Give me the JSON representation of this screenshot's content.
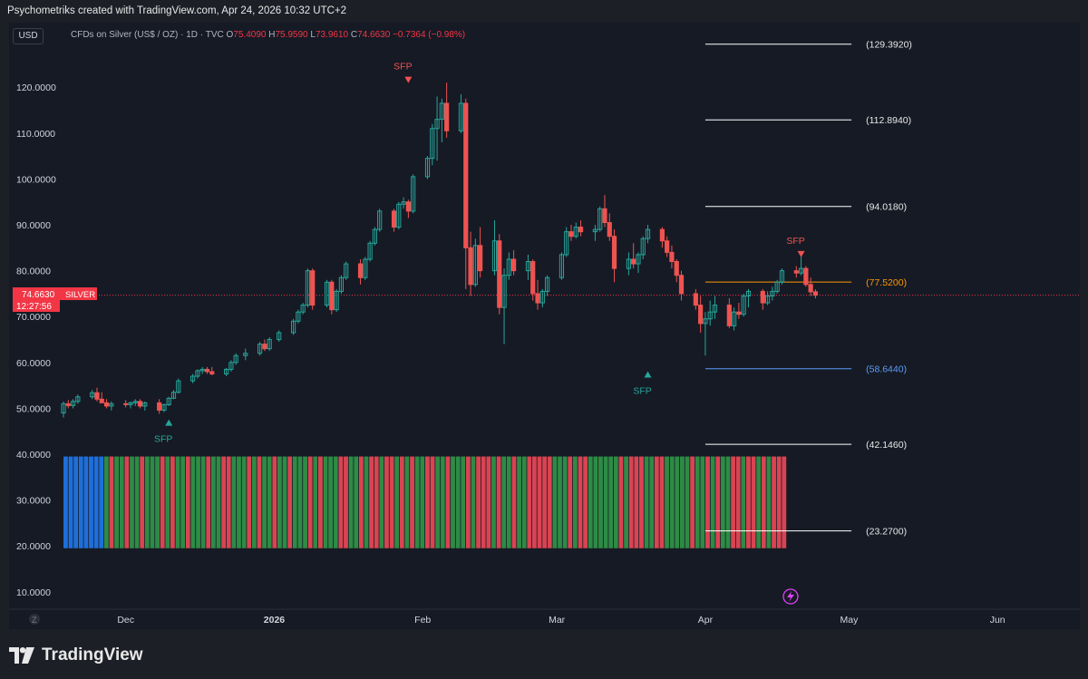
{
  "header": {
    "caption": "Psychometriks created with TradingView.com, Apr 24, 2026 10:32 UTC+2"
  },
  "toolbar": {
    "currency": "USD",
    "symbol_description": "CFDs on Silver (US$ / OZ) · 1D · TVC",
    "ohlc": {
      "o_label": "O",
      "o_value": "75.4090",
      "h_label": "H",
      "h_value": "75.9590",
      "l_label": "L",
      "l_value": "73.9610",
      "c_label": "C",
      "c_value": "74.6630",
      "change": "−0.7364 (−0.98%)"
    }
  },
  "price_tag": {
    "price": "74.6630",
    "symbol": "SILVER",
    "countdown": "12:27:56"
  },
  "footer": {
    "brand": "TradingView"
  },
  "colors": {
    "up": "#26a69a",
    "down": "#ef5350",
    "panel": "#161a25",
    "fib_white": "#ffffff",
    "fib_orange": "#ff9800",
    "fib_blue": "#5b9cf6",
    "vol_green": "#2e8b45",
    "vol_red": "#d94452",
    "vol_blue": "#1e6fd9"
  },
  "chart_data": {
    "type": "candlestick",
    "y_axis": {
      "ticks": [
        "120.0000",
        "110.0000",
        "100.0000",
        "90.0000",
        "80.0000",
        "70.0000",
        "60.0000",
        "50.0000",
        "40.0000",
        "30.0000",
        "20.0000",
        "10.0000"
      ],
      "tick_values": [
        120,
        110,
        100,
        90,
        80,
        70,
        60,
        50,
        40,
        30,
        20,
        10
      ],
      "range": [
        7,
        132.5
      ]
    },
    "x_axis": {
      "labels": [
        "Dec",
        "2026",
        "Feb",
        "Mar",
        "Apr",
        "May",
        "Jun"
      ],
      "label_dates": [
        "2025-12-01",
        "2026-01-01",
        "2026-02-01",
        "2026-03-01",
        "2026-04-01",
        "2026-05-01",
        "2026-06-01"
      ],
      "bold": [
        "2026"
      ],
      "start_date": "2025-11-18",
      "end_date": "2026-06-18"
    },
    "fib_levels": [
      {
        "label": "(129.3920)",
        "value": 129.392,
        "color": "white"
      },
      {
        "label": "(112.8940)",
        "value": 112.894,
        "color": "white"
      },
      {
        "label": "(94.0180)",
        "value": 94.018,
        "color": "white"
      },
      {
        "label": "(77.5200)",
        "value": 77.52,
        "color": "orange"
      },
      {
        "label": "(58.6440)",
        "value": 58.644,
        "color": "blue"
      },
      {
        "label": "(42.1460)",
        "value": 42.146,
        "color": "white"
      },
      {
        "label": "(23.2700)",
        "value": 23.27,
        "color": "white"
      }
    ],
    "fib_range_dates": [
      "2026-04-01",
      "2026-04-30"
    ],
    "current_price": 74.663,
    "sfp_markers": [
      {
        "label": "SFP",
        "date": "2025-12-10",
        "value": 47.0,
        "direction": "up",
        "color": "up"
      },
      {
        "label": "SFP",
        "date": "2026-01-29",
        "value": 121.5,
        "direction": "down",
        "color": "down"
      },
      {
        "label": "SFP",
        "date": "2026-03-20",
        "value": 57.5,
        "direction": "up",
        "color": "up"
      },
      {
        "label": "SFP",
        "date": "2026-04-21",
        "value": 83.5,
        "direction": "down",
        "color": "down"
      }
    ],
    "candles": [
      {
        "d": "2025-11-18",
        "o": 49.0,
        "h": 51.5,
        "l": 48.0,
        "c": 51.0
      },
      {
        "d": "2025-11-19",
        "o": 51.0,
        "h": 51.8,
        "l": 50.0,
        "c": 50.6
      },
      {
        "d": "2025-11-20",
        "o": 50.6,
        "h": 52.0,
        "l": 50.0,
        "c": 51.5
      },
      {
        "d": "2025-11-21",
        "o": 51.5,
        "h": 53.0,
        "l": 51.0,
        "c": 52.5
      },
      {
        "d": "2025-11-24",
        "o": 52.5,
        "h": 54.0,
        "l": 52.0,
        "c": 53.4
      },
      {
        "d": "2025-11-25",
        "o": 53.4,
        "h": 54.5,
        "l": 51.5,
        "c": 52.0
      },
      {
        "d": "2025-11-26",
        "o": 52.0,
        "h": 53.5,
        "l": 51.5,
        "c": 51.2
      },
      {
        "d": "2025-11-27",
        "o": 51.2,
        "h": 52.0,
        "l": 50.0,
        "c": 50.5
      },
      {
        "d": "2025-11-28",
        "o": 50.5,
        "h": 51.5,
        "l": 49.5,
        "c": 51.0
      },
      {
        "d": "2025-12-01",
        "o": 51.0,
        "h": 51.8,
        "l": 50.2,
        "c": 50.8
      },
      {
        "d": "2025-12-02",
        "o": 50.8,
        "h": 51.5,
        "l": 50.0,
        "c": 51.2
      },
      {
        "d": "2025-12-03",
        "o": 51.2,
        "h": 52.0,
        "l": 50.5,
        "c": 51.5
      },
      {
        "d": "2025-12-04",
        "o": 51.5,
        "h": 52.0,
        "l": 50.0,
        "c": 50.5
      },
      {
        "d": "2025-12-05",
        "o": 50.5,
        "h": 51.5,
        "l": 49.5,
        "c": 51.2
      },
      {
        "d": "2025-12-08",
        "o": 51.2,
        "h": 52.0,
        "l": 48.8,
        "c": 49.6
      },
      {
        "d": "2025-12-09",
        "o": 49.6,
        "h": 51.0,
        "l": 49.2,
        "c": 50.8
      },
      {
        "d": "2025-12-10",
        "o": 50.8,
        "h": 52.5,
        "l": 50.5,
        "c": 52.2
      },
      {
        "d": "2025-12-11",
        "o": 52.2,
        "h": 54.0,
        "l": 52.0,
        "c": 53.5
      },
      {
        "d": "2025-12-12",
        "o": 53.5,
        "h": 56.5,
        "l": 53.2,
        "c": 56.0
      },
      {
        "d": "2025-12-15",
        "o": 56.0,
        "h": 57.5,
        "l": 55.5,
        "c": 57.0
      },
      {
        "d": "2025-12-16",
        "o": 57.0,
        "h": 58.5,
        "l": 56.5,
        "c": 58.2
      },
      {
        "d": "2025-12-17",
        "o": 58.2,
        "h": 59.0,
        "l": 57.5,
        "c": 58.5
      },
      {
        "d": "2025-12-18",
        "o": 58.5,
        "h": 59.0,
        "l": 57.5,
        "c": 58.0
      },
      {
        "d": "2025-12-19",
        "o": 58.0,
        "h": 59.0,
        "l": 57.2,
        "c": 57.5
      },
      {
        "d": "2025-12-22",
        "o": 57.5,
        "h": 58.8,
        "l": 57.0,
        "c": 58.5
      },
      {
        "d": "2025-12-23",
        "o": 58.5,
        "h": 60.5,
        "l": 58.0,
        "c": 60.0
      },
      {
        "d": "2025-12-24",
        "o": 60.0,
        "h": 62.0,
        "l": 59.5,
        "c": 61.5
      },
      {
        "d": "2025-12-26",
        "o": 61.5,
        "h": 63.0,
        "l": 60.5,
        "c": 62.0
      },
      {
        "d": "2025-12-29",
        "o": 62.0,
        "h": 64.5,
        "l": 61.5,
        "c": 64.0
      },
      {
        "d": "2025-12-30",
        "o": 64.0,
        "h": 65.0,
        "l": 62.5,
        "c": 63.0
      },
      {
        "d": "2025-12-31",
        "o": 63.0,
        "h": 65.5,
        "l": 62.5,
        "c": 65.0
      },
      {
        "d": "2026-01-02",
        "o": 65.0,
        "h": 67.0,
        "l": 64.5,
        "c": 66.5
      },
      {
        "d": "2026-01-05",
        "o": 66.5,
        "h": 69.5,
        "l": 66.0,
        "c": 69.0
      },
      {
        "d": "2026-01-06",
        "o": 69.0,
        "h": 71.5,
        "l": 68.5,
        "c": 71.0
      },
      {
        "d": "2026-01-07",
        "o": 71.0,
        "h": 73.0,
        "l": 70.5,
        "c": 72.5
      },
      {
        "d": "2026-01-08",
        "o": 72.5,
        "h": 80.5,
        "l": 72.0,
        "c": 80.0
      },
      {
        "d": "2026-01-09",
        "o": 80.0,
        "h": 80.5,
        "l": 71.5,
        "c": 72.5
      },
      {
        "d": "2026-01-12",
        "o": 72.5,
        "h": 78.0,
        "l": 72.0,
        "c": 77.5
      },
      {
        "d": "2026-01-13",
        "o": 77.5,
        "h": 78.0,
        "l": 70.5,
        "c": 71.5
      },
      {
        "d": "2026-01-14",
        "o": 71.5,
        "h": 76.0,
        "l": 71.0,
        "c": 75.5
      },
      {
        "d": "2026-01-15",
        "o": 75.5,
        "h": 79.0,
        "l": 75.0,
        "c": 78.5
      },
      {
        "d": "2026-01-16",
        "o": 78.5,
        "h": 82.0,
        "l": 78.0,
        "c": 81.5
      },
      {
        "d": "2026-01-19",
        "o": 81.5,
        "h": 82.5,
        "l": 77.0,
        "c": 78.5
      },
      {
        "d": "2026-01-20",
        "o": 78.5,
        "h": 83.0,
        "l": 78.0,
        "c": 82.5
      },
      {
        "d": "2026-01-21",
        "o": 82.5,
        "h": 86.5,
        "l": 82.0,
        "c": 86.0
      },
      {
        "d": "2026-01-22",
        "o": 86.0,
        "h": 89.5,
        "l": 85.5,
        "c": 89.0
      },
      {
        "d": "2026-01-23",
        "o": 89.0,
        "h": 93.5,
        "l": 88.5,
        "c": 93.0
      },
      {
        "d": "2026-01-26",
        "o": 93.0,
        "h": 93.5,
        "l": 88.5,
        "c": 89.5
      },
      {
        "d": "2026-01-27",
        "o": 89.5,
        "h": 95.0,
        "l": 89.0,
        "c": 94.5
      },
      {
        "d": "2026-01-28",
        "o": 94.5,
        "h": 96.0,
        "l": 93.5,
        "c": 95.0
      },
      {
        "d": "2026-01-29",
        "o": 95.0,
        "h": 95.5,
        "l": 91.5,
        "c": 93.0
      },
      {
        "d": "2026-01-30",
        "o": 93.0,
        "h": 101.0,
        "l": 92.5,
        "c": 100.5
      },
      {
        "d": "2026-02-02",
        "o": 100.5,
        "h": 105.0,
        "l": 100.0,
        "c": 104.5
      },
      {
        "d": "2026-02-03",
        "o": 104.5,
        "h": 112.0,
        "l": 103.0,
        "c": 111.0
      },
      {
        "d": "2026-02-04",
        "o": 111.0,
        "h": 118.0,
        "l": 104.0,
        "c": 113.0
      },
      {
        "d": "2026-02-05",
        "o": 113.0,
        "h": 117.5,
        "l": 108.0,
        "c": 116.5
      },
      {
        "d": "2026-02-06",
        "o": 116.5,
        "h": 121.0,
        "l": 109.0,
        "c": 110.5
      },
      {
        "d": "2026-02-09",
        "o": 110.5,
        "h": 118.5,
        "l": 110.0,
        "c": 116.5
      },
      {
        "d": "2026-02-10",
        "o": 116.5,
        "h": 117.5,
        "l": 76.0,
        "c": 85.0
      },
      {
        "d": "2026-02-11",
        "o": 85.0,
        "h": 88.5,
        "l": 74.5,
        "c": 77.0
      },
      {
        "d": "2026-02-12",
        "o": 77.0,
        "h": 87.0,
        "l": 76.5,
        "c": 85.5
      },
      {
        "d": "2026-02-13",
        "o": 85.5,
        "h": 89.5,
        "l": 78.5,
        "c": 80.0
      },
      {
        "d": "2026-02-16",
        "o": 80.0,
        "h": 91.0,
        "l": 79.0,
        "c": 86.5
      },
      {
        "d": "2026-02-17",
        "o": 86.5,
        "h": 88.0,
        "l": 70.5,
        "c": 72.0
      },
      {
        "d": "2026-02-18",
        "o": 72.0,
        "h": 80.5,
        "l": 64.0,
        "c": 79.0
      },
      {
        "d": "2026-02-19",
        "o": 79.0,
        "h": 84.0,
        "l": 78.0,
        "c": 82.5
      },
      {
        "d": "2026-02-20",
        "o": 82.5,
        "h": 84.5,
        "l": 79.0,
        "c": 80.0
      },
      {
        "d": "2026-02-23",
        "o": 80.0,
        "h": 83.5,
        "l": 78.0,
        "c": 82.0
      },
      {
        "d": "2026-02-24",
        "o": 82.0,
        "h": 82.5,
        "l": 73.5,
        "c": 75.0
      },
      {
        "d": "2026-02-25",
        "o": 75.0,
        "h": 78.0,
        "l": 71.5,
        "c": 73.0
      },
      {
        "d": "2026-02-26",
        "o": 73.0,
        "h": 76.0,
        "l": 72.0,
        "c": 75.5
      },
      {
        "d": "2026-02-27",
        "o": 75.5,
        "h": 79.0,
        "l": 74.5,
        "c": 78.5
      },
      {
        "d": "2026-03-02",
        "o": 78.5,
        "h": 84.0,
        "l": 78.0,
        "c": 83.5
      },
      {
        "d": "2026-03-03",
        "o": 83.5,
        "h": 89.5,
        "l": 83.0,
        "c": 88.5
      },
      {
        "d": "2026-03-04",
        "o": 88.5,
        "h": 90.0,
        "l": 86.5,
        "c": 87.5
      },
      {
        "d": "2026-03-05",
        "o": 87.5,
        "h": 90.5,
        "l": 87.0,
        "c": 89.5
      },
      {
        "d": "2026-03-06",
        "o": 89.5,
        "h": 91.0,
        "l": 87.5,
        "c": 88.5
      },
      {
        "d": "2026-03-09",
        "o": 88.5,
        "h": 90.0,
        "l": 86.5,
        "c": 89.0
      },
      {
        "d": "2026-03-10",
        "o": 89.0,
        "h": 94.0,
        "l": 88.5,
        "c": 93.5
      },
      {
        "d": "2026-03-11",
        "o": 93.5,
        "h": 96.5,
        "l": 89.5,
        "c": 90.5
      },
      {
        "d": "2026-03-12",
        "o": 90.5,
        "h": 92.5,
        "l": 86.5,
        "c": 87.5
      },
      {
        "d": "2026-03-13",
        "o": 87.5,
        "h": 89.0,
        "l": 77.5,
        "c": 80.5
      },
      {
        "d": "2026-03-16",
        "o": 80.5,
        "h": 84.0,
        "l": 79.0,
        "c": 82.5
      },
      {
        "d": "2026-03-17",
        "o": 82.5,
        "h": 86.0,
        "l": 80.5,
        "c": 81.5
      },
      {
        "d": "2026-03-18",
        "o": 81.5,
        "h": 84.0,
        "l": 79.5,
        "c": 83.5
      },
      {
        "d": "2026-03-19",
        "o": 83.5,
        "h": 87.5,
        "l": 82.5,
        "c": 87.0
      },
      {
        "d": "2026-03-20",
        "o": 87.0,
        "h": 90.0,
        "l": 86.0,
        "c": 89.0
      },
      {
        "d": "2026-03-23",
        "o": 89.0,
        "h": 89.5,
        "l": 85.0,
        "c": 86.5
      },
      {
        "d": "2026-03-24",
        "o": 86.5,
        "h": 87.5,
        "l": 83.0,
        "c": 84.0
      },
      {
        "d": "2026-03-25",
        "o": 84.0,
        "h": 85.5,
        "l": 80.5,
        "c": 82.0
      },
      {
        "d": "2026-03-26",
        "o": 82.0,
        "h": 82.5,
        "l": 77.5,
        "c": 79.0
      },
      {
        "d": "2026-03-27",
        "o": 79.0,
        "h": 80.0,
        "l": 73.5,
        "c": 75.0
      },
      {
        "d": "2026-03-30",
        "o": 75.0,
        "h": 76.0,
        "l": 71.5,
        "c": 72.5
      },
      {
        "d": "2026-03-31",
        "o": 72.5,
        "h": 74.5,
        "l": 66.5,
        "c": 68.5
      },
      {
        "d": "2026-04-01",
        "o": 68.5,
        "h": 71.0,
        "l": 61.5,
        "c": 69.5
      },
      {
        "d": "2026-04-02",
        "o": 69.5,
        "h": 73.5,
        "l": 68.0,
        "c": 71.0
      },
      {
        "d": "2026-04-03",
        "o": 71.0,
        "h": 74.5,
        "l": 69.5,
        "c": 72.5
      },
      {
        "d": "2026-04-06",
        "o": 72.5,
        "h": 74.0,
        "l": 67.5,
        "c": 68.0
      },
      {
        "d": "2026-04-07",
        "o": 68.0,
        "h": 72.0,
        "l": 67.0,
        "c": 71.0
      },
      {
        "d": "2026-04-08",
        "o": 71.0,
        "h": 73.0,
        "l": 69.5,
        "c": 70.5
      },
      {
        "d": "2026-04-09",
        "o": 70.5,
        "h": 75.0,
        "l": 70.0,
        "c": 74.5
      },
      {
        "d": "2026-04-10",
        "o": 74.5,
        "h": 76.0,
        "l": 72.0,
        "c": 75.5
      },
      {
        "d": "2026-04-13",
        "o": 75.5,
        "h": 76.0,
        "l": 71.5,
        "c": 73.0
      },
      {
        "d": "2026-04-14",
        "o": 73.0,
        "h": 75.5,
        "l": 72.5,
        "c": 74.5
      },
      {
        "d": "2026-04-15",
        "o": 74.5,
        "h": 76.5,
        "l": 73.5,
        "c": 75.5
      },
      {
        "d": "2026-04-16",
        "o": 75.5,
        "h": 78.0,
        "l": 75.0,
        "c": 77.5
      },
      {
        "d": "2026-04-17",
        "o": 77.5,
        "h": 80.5,
        "l": 77.0,
        "c": 80.0
      },
      {
        "d": "2026-04-20",
        "o": 80.0,
        "h": 81.0,
        "l": 78.5,
        "c": 79.5
      },
      {
        "d": "2026-04-21",
        "o": 79.5,
        "h": 83.5,
        "l": 79.0,
        "c": 80.5
      },
      {
        "d": "2026-04-22",
        "o": 80.5,
        "h": 81.0,
        "l": 76.5,
        "c": 77.0
      },
      {
        "d": "2026-04-23",
        "o": 77.0,
        "h": 78.5,
        "l": 74.5,
        "c": 75.4
      },
      {
        "d": "2026-04-24",
        "o": 75.409,
        "h": 75.959,
        "l": 73.961,
        "c": 74.663
      }
    ],
    "volume_panel": {
      "top_value": 39.5,
      "bottom_value": 19.5,
      "blue_bars": 8,
      "colors": [
        "blue",
        "blue",
        "blue",
        "blue",
        "blue",
        "blue",
        "blue",
        "blue",
        "green",
        "red",
        "green",
        "green",
        "red",
        "green",
        "green",
        "red",
        "green",
        "green",
        "green",
        "red",
        "green",
        "red",
        "green",
        "green",
        "red",
        "green",
        "green",
        "green",
        "red",
        "green",
        "green",
        "red",
        "red",
        "green",
        "green",
        "green",
        "red",
        "green",
        "red",
        "green",
        "green",
        "red",
        "green",
        "green",
        "red",
        "green",
        "green",
        "green",
        "red",
        "green",
        "red",
        "green",
        "green",
        "green",
        "red",
        "red",
        "green",
        "green",
        "red",
        "green",
        "red",
        "red",
        "green",
        "red",
        "red",
        "green",
        "red",
        "green",
        "red",
        "green",
        "green",
        "red",
        "red",
        "green",
        "green",
        "red",
        "green",
        "green",
        "green",
        "red",
        "green",
        "red",
        "red",
        "red",
        "green",
        "red",
        "green",
        "green",
        "red",
        "green",
        "green",
        "red",
        "red",
        "red",
        "red",
        "red",
        "green",
        "green",
        "green",
        "red",
        "green",
        "red",
        "red",
        "green",
        "green",
        "green",
        "green",
        "green",
        "green",
        "red",
        "green",
        "red",
        "red",
        "red",
        "green",
        "green",
        "red",
        "red",
        "green",
        "green",
        "green",
        "green",
        "green",
        "red",
        "green",
        "green",
        "red",
        "green",
        "red",
        "green",
        "green",
        "red",
        "red",
        "green",
        "red",
        "red",
        "green",
        "red",
        "green",
        "red",
        "red",
        "red"
      ]
    }
  }
}
